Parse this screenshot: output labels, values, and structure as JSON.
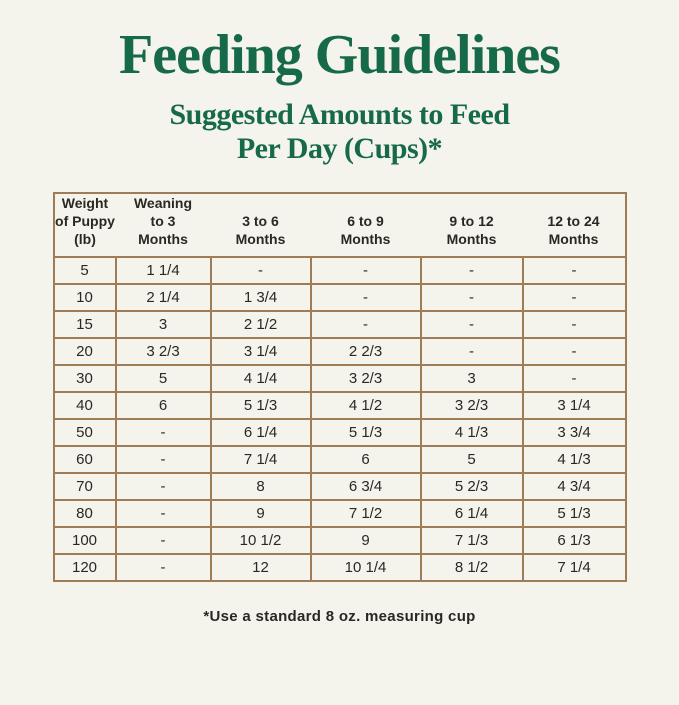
{
  "header": {
    "title": "Feeding Guidelines",
    "subtitle_lines": [
      "Suggested Amounts to Feed",
      "Per Day (Cups)*"
    ]
  },
  "footnote": "*Use a standard 8 oz. measuring cup",
  "colors": {
    "background": "#F4F3EC",
    "title_green": "#176A49",
    "table_border": "#9E7C57",
    "text_dark": "#2B2823"
  },
  "chart_data": {
    "type": "table",
    "title": "Feeding Guidelines",
    "subtitle": "Suggested Amounts to Feed Per Day (Cups)*",
    "units": "cups per day",
    "footnote": "*Use a standard 8 oz. measuring cup",
    "columns": [
      "Weight\nof Puppy\n(lb)",
      "Weaning\nto 3\nMonths",
      "3 to 6\nMonths",
      "6 to 9\nMonths",
      "9 to 12\nMonths",
      "12 to 24\nMonths"
    ],
    "rows": [
      [
        "5",
        "1 1/4",
        "-",
        "-",
        "-",
        "-"
      ],
      [
        "10",
        "2 1/4",
        "1 3/4",
        "-",
        "-",
        "-"
      ],
      [
        "15",
        "3",
        "2 1/2",
        "-",
        "-",
        "-"
      ],
      [
        "20",
        "3 2/3",
        "3 1/4",
        "2 2/3",
        "-",
        "-"
      ],
      [
        "30",
        "5",
        "4 1/4",
        "3 2/3",
        "3",
        "-"
      ],
      [
        "40",
        "6",
        "5 1/3",
        "4 1/2",
        "3 2/3",
        "3 1/4"
      ],
      [
        "50",
        "-",
        "6 1/4",
        "5 1/3",
        "4 1/3",
        "3 3/4"
      ],
      [
        "60",
        "-",
        "7 1/4",
        "6",
        "5",
        "4 1/3"
      ],
      [
        "70",
        "-",
        "8",
        "6 3/4",
        "5 2/3",
        "4 3/4"
      ],
      [
        "80",
        "-",
        "9",
        "7 1/2",
        "6 1/4",
        "5 1/3"
      ],
      [
        "100",
        "-",
        "10 1/2",
        "9",
        "7 1/3",
        "6 1/3"
      ],
      [
        "120",
        "-",
        "12",
        "10 1/4",
        "8 1/2",
        "7 1/4"
      ]
    ]
  }
}
